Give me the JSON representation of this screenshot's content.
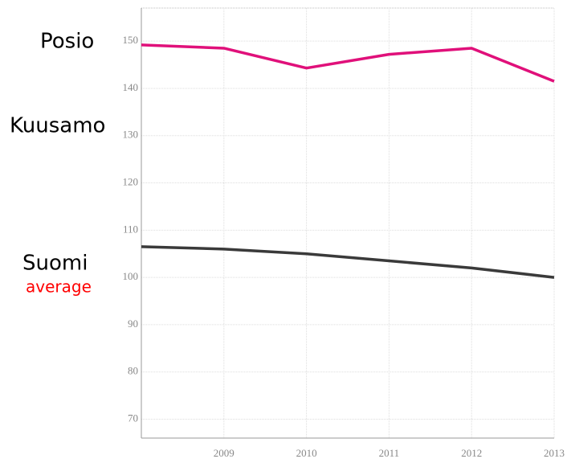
{
  "chart_data": {
    "type": "line",
    "x": [
      2008,
      2009,
      2010,
      2011,
      2012,
      2013
    ],
    "series": [
      {
        "name": "Posio",
        "color": "#e0107a",
        "values": [
          149.2,
          148.5,
          144.3,
          147.2,
          148.5,
          141.5
        ]
      },
      {
        "name": "Suomi",
        "color": "#3a3a3a",
        "values": [
          106.5,
          106,
          105,
          103.5,
          102,
          100
        ]
      }
    ],
    "annotations": [
      {
        "text": "Posio",
        "color": "#000000"
      },
      {
        "text": "Kuusamo",
        "color": "#000000"
      },
      {
        "text": "Suomi",
        "color": "#000000"
      },
      {
        "text": "average",
        "color": "#ff0000"
      }
    ],
    "xlim": [
      2008,
      2013
    ],
    "xticks": [
      2009,
      2010,
      2011,
      2012,
      2013
    ],
    "ylim": [
      66,
      157
    ],
    "yticks": [
      70,
      80,
      90,
      100,
      110,
      120,
      130,
      140,
      150
    ],
    "grid": true
  }
}
